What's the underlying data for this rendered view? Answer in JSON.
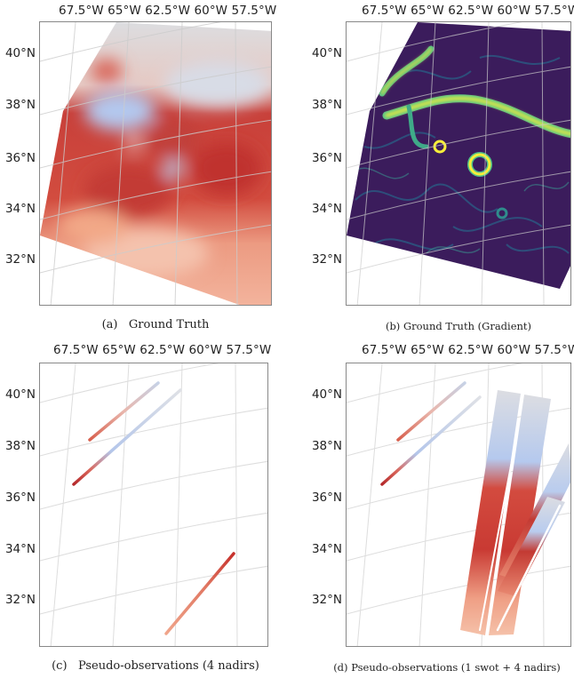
{
  "lon_labels": [
    "67.5°W",
    "65°W",
    "62.5°W",
    "60°W",
    "57.5°W"
  ],
  "lat_labels": [
    "40°N",
    "38°N",
    "36°N",
    "34°N",
    "32°N"
  ],
  "panels": [
    {
      "id": "a",
      "caption_tag": "(a)",
      "caption_text": "Ground Truth"
    },
    {
      "id": "b",
      "caption_tag": "(b)",
      "caption_text": "Ground Truth (Gradient)"
    },
    {
      "id": "c",
      "caption_tag": "(c)",
      "caption_text": "Pseudo-observations (4 nadirs)"
    },
    {
      "id": "d",
      "caption_tag": "(d)",
      "caption_text": "Pseudo-observations (1 swot + 4 nadirs)"
    }
  ],
  "colors": {
    "warm": "#c6302b",
    "warm_light": "#f0a58b",
    "cool": "#a9c3ec",
    "neutral": "#dcdde0",
    "viridis_dark": "#3d1a5a",
    "viridis_mid": "#2f6f8e",
    "viridis_bright": "#f7ee3a"
  }
}
